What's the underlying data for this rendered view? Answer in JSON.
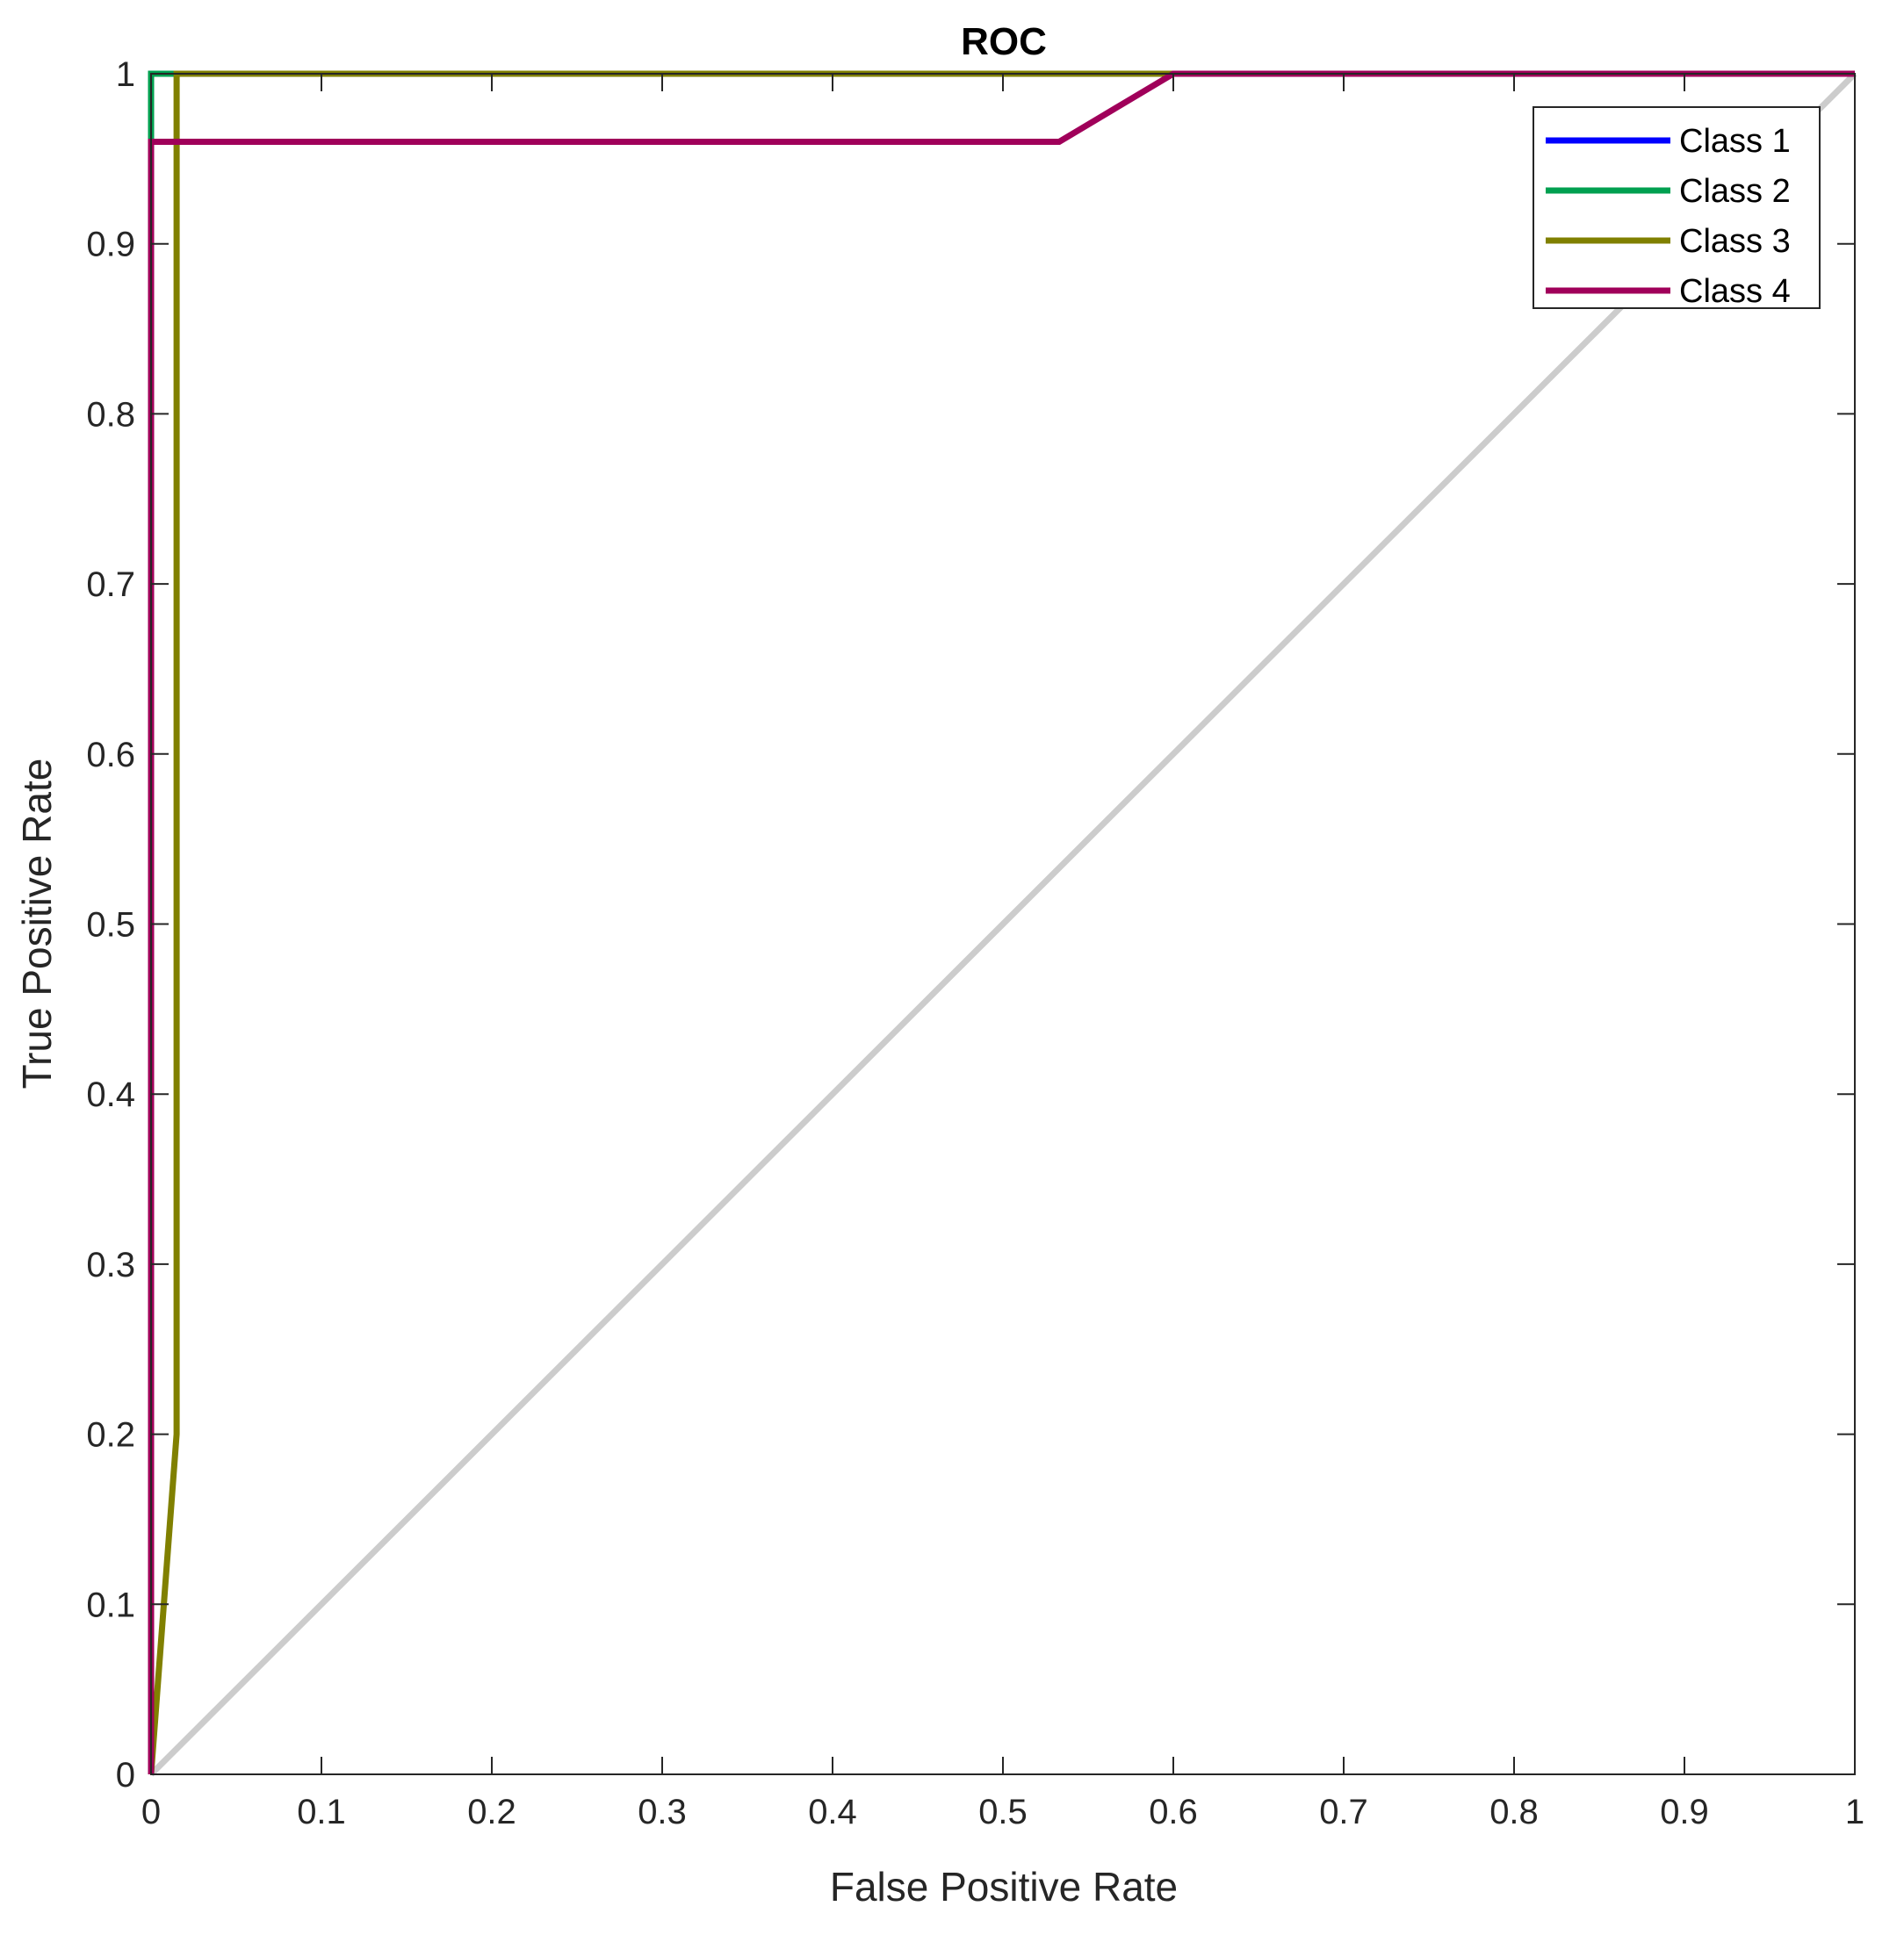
{
  "chart_data": {
    "type": "line",
    "title": "ROC",
    "xlabel": "False Positive Rate",
    "ylabel": "True Positive Rate",
    "xlim": [
      0,
      1
    ],
    "ylim": [
      0,
      1
    ],
    "xticks": [
      "0",
      "0.1",
      "0.2",
      "0.3",
      "0.4",
      "0.5",
      "0.6",
      "0.7",
      "0.8",
      "0.9",
      "1"
    ],
    "yticks": [
      "0",
      "0.1",
      "0.2",
      "0.3",
      "0.4",
      "0.5",
      "0.6",
      "0.7",
      "0.8",
      "0.9",
      "1"
    ],
    "grid": false,
    "legend_position": "top-right",
    "diagonal": {
      "x": [
        0,
        1
      ],
      "y": [
        0,
        1
      ],
      "color": "#cccccc"
    },
    "series": [
      {
        "name": "Class 1",
        "color": "#0000ff",
        "x": [
          0,
          0,
          1
        ],
        "y": [
          0,
          1,
          1
        ]
      },
      {
        "name": "Class 2",
        "color": "#00a050",
        "x": [
          0,
          0,
          1
        ],
        "y": [
          0,
          1,
          1
        ]
      },
      {
        "name": "Class 3",
        "color": "#808000",
        "x": [
          0,
          0.015,
          0.015,
          1
        ],
        "y": [
          0,
          0.2,
          1,
          1
        ]
      },
      {
        "name": "Class 4",
        "color": "#a0005a",
        "x": [
          0,
          0,
          0.533,
          0.6,
          1
        ],
        "y": [
          0,
          0.96,
          0.96,
          1,
          1
        ]
      }
    ]
  }
}
